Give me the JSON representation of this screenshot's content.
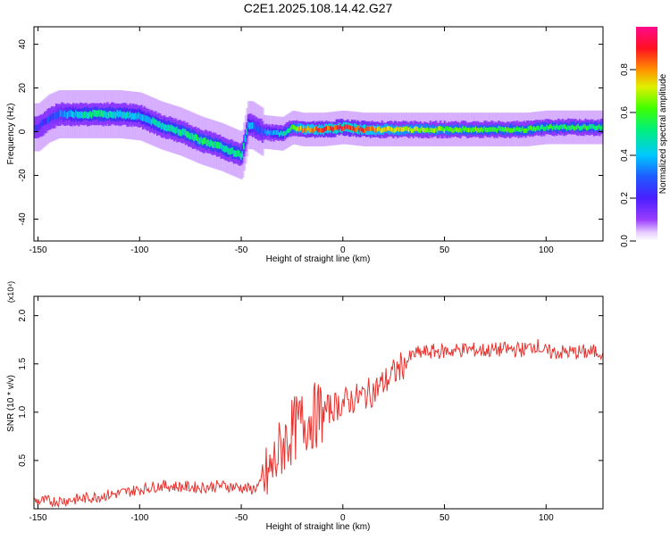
{
  "title": "C2E1.2025.108.14.42.G27",
  "colors": {
    "snr_line": "#e8322e",
    "frame": "#000000"
  },
  "chart_data": [
    {
      "type": "heatmap",
      "xlabel": "Height of straight line (km)",
      "ylabel": "Frequency (Hz)",
      "xlim": [
        -152,
        128
      ],
      "ylim": [
        -50,
        48
      ],
      "xticks": [
        "-150",
        "-100",
        "-50",
        "0",
        "50",
        "100"
      ],
      "xtick_values": [
        -150,
        -100,
        -50,
        0,
        50,
        100
      ],
      "yticks": [
        "40",
        "20",
        "0",
        "-20",
        "-40"
      ],
      "ytick_values": [
        40,
        20,
        0,
        -20,
        -40
      ],
      "grid": false,
      "colorbar": {
        "label": "Normalized spectral amplitude",
        "range": [
          0,
          1
        ],
        "ticks": [
          "0.0",
          "0.2",
          "0.4",
          "0.6",
          "0.8"
        ],
        "tick_values": [
          0.0,
          0.2,
          0.4,
          0.6,
          0.8
        ],
        "colormap": "rainbow (purple → blue → cyan → green → yellow → red → magenta)"
      },
      "ridge_center": {
        "x": [
          -150,
          -145,
          -140,
          -130,
          -120,
          -110,
          -100,
          -90,
          -80,
          -70,
          -60,
          -55,
          -50,
          -47,
          -45,
          -40,
          -30,
          -25,
          -20,
          -10,
          0,
          10,
          20,
          30,
          50,
          70,
          90,
          100,
          110,
          128
        ],
        "y": [
          2,
          6,
          8,
          8,
          8,
          8,
          7,
          3,
          0,
          -4,
          -7,
          -9,
          -11,
          3,
          3,
          0,
          -1,
          2,
          1,
          1,
          2,
          1,
          1,
          1,
          1,
          1,
          1,
          2,
          2,
          2
        ]
      },
      "ridge_amplitude": {
        "x": [
          -150,
          -140,
          -130,
          -120,
          -110,
          -100,
          -90,
          -80,
          -70,
          -60,
          -50,
          -45,
          -40,
          -30,
          -20,
          -10,
          0,
          10,
          20,
          30,
          50,
          70,
          90,
          100,
          128
        ],
        "values": [
          0.2,
          0.3,
          0.45,
          0.5,
          0.45,
          0.4,
          0.45,
          0.5,
          0.55,
          0.5,
          0.5,
          0.35,
          0.3,
          0.45,
          0.8,
          0.85,
          0.9,
          0.85,
          0.75,
          0.7,
          0.65,
          0.6,
          0.6,
          0.55,
          0.55
        ]
      }
    },
    {
      "type": "line",
      "xlabel": "Height of straight line (km)",
      "ylabel": "SNR (10 * v/v)",
      "y_multiplier": "(x10⁴)",
      "xlim": [
        -152,
        128
      ],
      "ylim": [
        0,
        2.2
      ],
      "xticks": [
        "-150",
        "-100",
        "-50",
        "0",
        "50",
        "100"
      ],
      "xtick_values": [
        -150,
        -100,
        -50,
        0,
        50,
        100
      ],
      "yticks": [
        "0.5",
        "1.0",
        "1.5",
        "2.0"
      ],
      "ytick_values": [
        0.5,
        1.0,
        1.5,
        2.0
      ],
      "grid": false,
      "series": [
        {
          "x": [
            -150,
            -140,
            -130,
            -120,
            -110,
            -100,
            -90,
            -80,
            -70,
            -60,
            -50,
            -45,
            -40,
            -35,
            -30,
            -25,
            -20,
            -15,
            -10,
            -5,
            0,
            5,
            10,
            15,
            20,
            25,
            30,
            35,
            40,
            45,
            50,
            60,
            70,
            80,
            90,
            95,
            100,
            110,
            120,
            128
          ],
          "values": [
            0.08,
            0.08,
            0.1,
            0.13,
            0.16,
            0.2,
            0.24,
            0.23,
            0.22,
            0.24,
            0.22,
            0.2,
            0.25,
            0.4,
            0.65,
            0.8,
            0.9,
            0.95,
            1.0,
            1.05,
            1.1,
            1.13,
            1.17,
            1.22,
            1.3,
            1.4,
            1.5,
            1.6,
            1.62,
            1.63,
            1.63,
            1.65,
            1.64,
            1.65,
            1.65,
            1.7,
            1.62,
            1.62,
            1.62,
            1.63
          ]
        }
      ]
    }
  ]
}
